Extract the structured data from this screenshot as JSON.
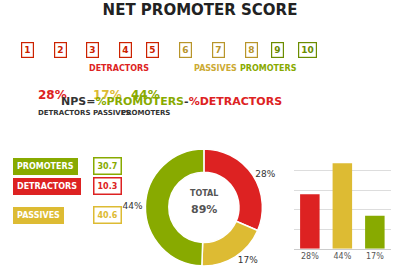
{
  "chart_data": [
    {
      "type": "pie",
      "title": "NET PROMOTER SCORE",
      "values": [
        28,
        17,
        44
      ],
      "value_labels": [
        "28%",
        "17%",
        "44%"
      ],
      "colors": [
        "#dd2222",
        "#ddbb33",
        "#88aa00"
      ],
      "data_labels": true,
      "annotations": [
        [
          {
            "text": "1",
            "color": "#cc2200"
          },
          {
            "text": "2",
            "color": "#cc2200"
          },
          {
            "text": "3",
            "color": "#cc2200"
          },
          {
            "text": "4",
            "color": "#cc2200"
          },
          {
            "text": "5",
            "color": "#cc2200"
          },
          {
            "text": "6",
            "color": "#b8952a"
          },
          {
            "text": "7",
            "color": "#b8952a"
          },
          {
            "text": "8",
            "color": "#b8952a"
          },
          {
            "text": "9",
            "color": "#6b8c00"
          },
          {
            "text": "10",
            "color": "#6b8c00"
          }
        ],
        [
          {
            "text": "DETRACTORS",
            "color": "#dd2222"
          },
          {
            "text": "PASSIVES",
            "color": "#ccaa33"
          },
          {
            "text": "PROMOTERS",
            "color": "#88aa00"
          }
        ],
        [
          {
            "text": "28%",
            "color": "#dd2222"
          },
          {
            "text": "17%",
            "color": "#ddbb33"
          },
          {
            "text": "44%",
            "color": "#88aa00"
          }
        ],
        [
          {
            "text": "DETRACTORS",
            "color": "#333333"
          },
          {
            "text": "PASSIVES",
            "color": "#333333"
          },
          {
            "text": "PROMOTERS",
            "color": "#333333"
          }
        ],
        [
          {
            "text": "NPS=",
            "color": "#333333"
          },
          {
            "text": "%PROMOTERS",
            "color": "#88aa00"
          },
          {
            "text": "-",
            "color": "#333333"
          },
          {
            "text": "%DETRACTORS",
            "color": "#dd2222"
          }
        ],
        [
          {
            "text": "PROMOTERS",
            "color": "#88aa00"
          },
          {
            "text": "30.7",
            "color": "#88aa00"
          }
        ],
        [
          {
            "text": "DETRACTORS",
            "color": "#dd2222"
          },
          {
            "text": "10.3",
            "color": "#dd2222"
          }
        ],
        [
          {
            "text": "PASSIVES",
            "color": "#ddbb33"
          },
          {
            "text": "40.6",
            "color": "#ddbb33"
          }
        ],
        [
          {
            "text": "TOTAL",
            "color": "#555555"
          },
          {
            "text": "89%",
            "color": "#555555"
          }
        ]
      ]
    },
    {
      "type": "bar",
      "categories": [
        "28%",
        "44%",
        "17%"
      ],
      "values": [
        28,
        44,
        17
      ],
      "colors": [
        "#dd2222",
        "#ddbb33",
        "#88aa00"
      ],
      "ylim": [
        0,
        50
      ],
      "yticks": [
        0,
        10,
        20,
        30,
        40,
        50
      ],
      "grid": true,
      "tick_labels": "x"
    }
  ]
}
